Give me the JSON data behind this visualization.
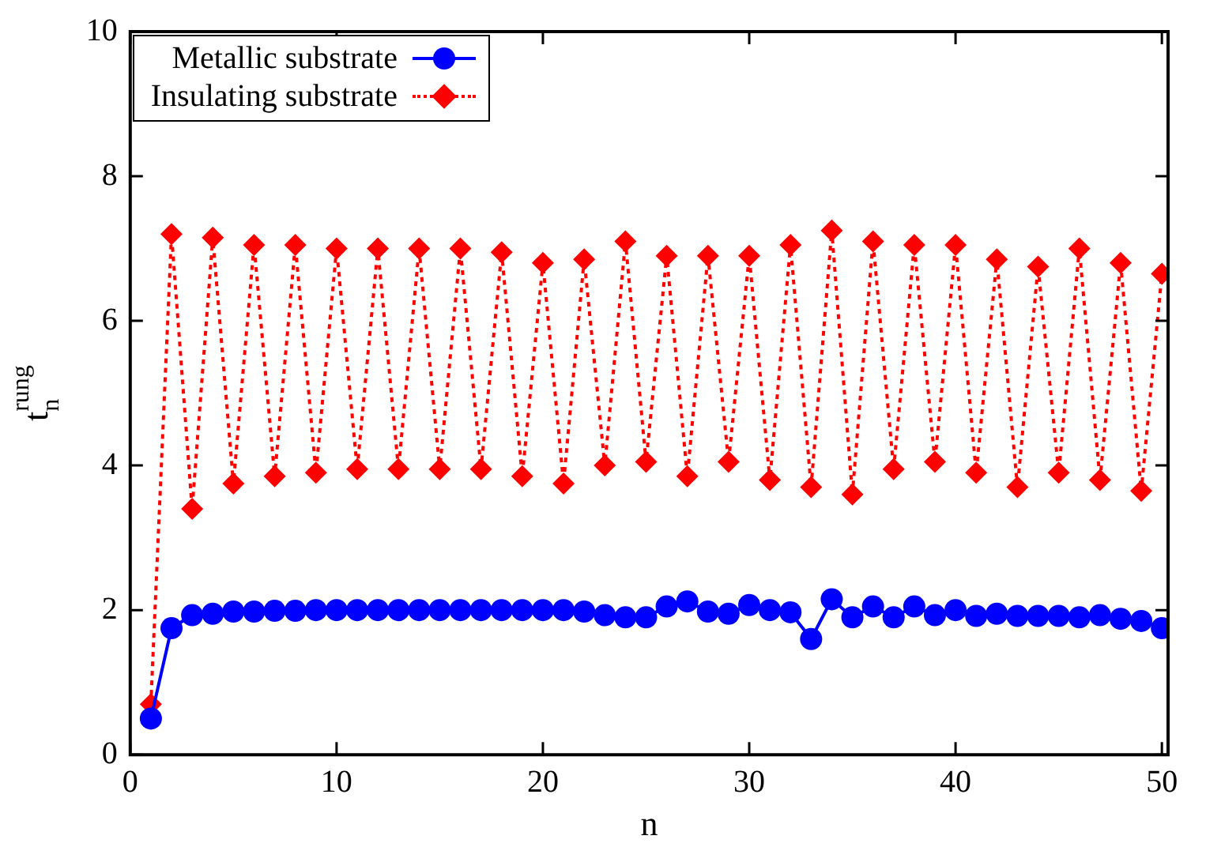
{
  "chart_data": {
    "type": "line",
    "xlabel": "n",
    "ylabel": "t$_{n}$$^{rung}$",
    "x": [
      1,
      2,
      3,
      4,
      5,
      6,
      7,
      8,
      9,
      10,
      11,
      12,
      13,
      14,
      15,
      16,
      17,
      18,
      19,
      20,
      21,
      22,
      23,
      24,
      25,
      26,
      27,
      28,
      29,
      30,
      31,
      32,
      33,
      34,
      35,
      36,
      37,
      38,
      39,
      40,
      41,
      42,
      43,
      44,
      45,
      46,
      47,
      48,
      49,
      50
    ],
    "series": [
      {
        "name": "Metallic substrate",
        "color": "#0000ff",
        "marker": "circle",
        "line_style": "solid",
        "values": [
          0.5,
          1.75,
          1.93,
          1.95,
          1.98,
          1.98,
          1.99,
          1.99,
          2.0,
          2.0,
          2.0,
          2.0,
          2.0,
          2.0,
          2.0,
          2.0,
          2.0,
          2.0,
          2.0,
          2.0,
          2.0,
          1.98,
          1.93,
          1.9,
          1.9,
          2.05,
          2.12,
          1.98,
          1.95,
          2.07,
          2.0,
          1.97,
          1.6,
          2.15,
          1.9,
          2.05,
          1.9,
          2.05,
          1.93,
          2.0,
          1.92,
          1.95,
          1.92,
          1.92,
          1.92,
          1.9,
          1.93,
          1.88,
          1.85,
          1.75
        ]
      },
      {
        "name": "Insulating substrate",
        "color": "#ff0000",
        "marker": "diamond",
        "line_style": "dotted",
        "values": [
          0.7,
          7.2,
          3.4,
          7.15,
          3.75,
          7.05,
          3.85,
          7.05,
          3.9,
          7.0,
          3.95,
          7.0,
          3.95,
          7.0,
          3.95,
          7.0,
          3.95,
          6.95,
          3.85,
          6.8,
          3.75,
          6.85,
          4.0,
          7.1,
          4.05,
          6.9,
          3.85,
          6.9,
          4.05,
          6.9,
          3.8,
          7.05,
          3.7,
          7.25,
          3.6,
          7.1,
          3.95,
          7.05,
          4.05,
          7.05,
          3.9,
          6.85,
          3.7,
          6.75,
          3.9,
          7.0,
          3.8,
          6.8,
          3.65,
          6.65
        ]
      }
    ],
    "xlim": [
      0,
      50.3
    ],
    "xticks": [
      0,
      10,
      20,
      30,
      40,
      50
    ],
    "ylim": [
      0,
      10
    ],
    "yticks": [
      0,
      2,
      4,
      6,
      8,
      10
    ],
    "grid": false,
    "legend": "top left"
  }
}
